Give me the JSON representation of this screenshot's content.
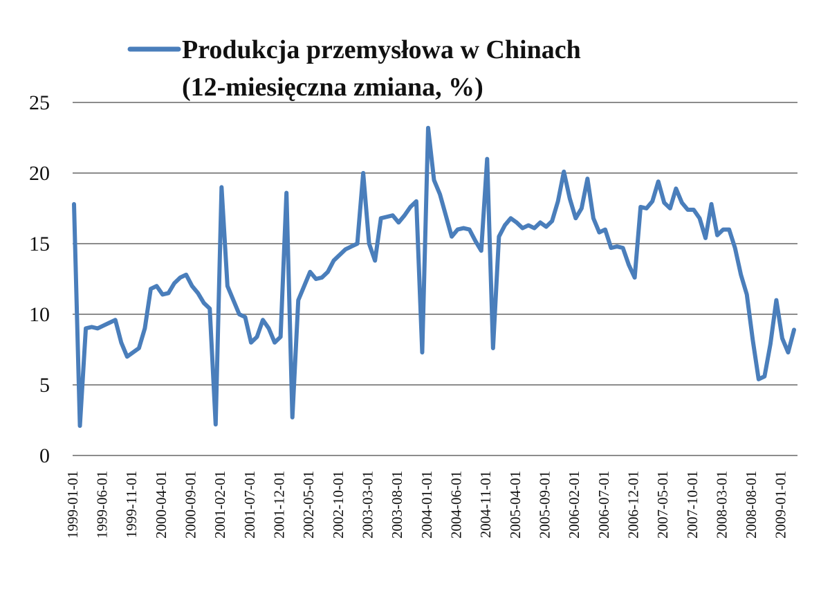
{
  "chart_data": {
    "type": "line",
    "legend": {
      "label_line1": "Produkcja przemysłowa w Chinach",
      "label_line2": "(12-miesięczna zmiana, %)",
      "placement": "top"
    },
    "ylim": [
      0,
      25
    ],
    "yticks": [
      "0",
      "5",
      "10",
      "15",
      "20",
      "25"
    ],
    "grid": "horizontal",
    "xticks": [
      "1999-01-01",
      "1999-06-01",
      "1999-11-01",
      "2000-04-01",
      "2000-09-01",
      "2001-02-01",
      "2001-07-01",
      "2001-12-01",
      "2002-05-01",
      "2002-10-01",
      "2003-03-01",
      "2003-08-01",
      "2004-01-01",
      "2004-06-01",
      "2004-11-01",
      "2005-04-01",
      "2005-09-01",
      "2006-02-01",
      "2006-07-01",
      "2006-12-01",
      "2007-05-01",
      "2007-10-01",
      "2008-03-01",
      "2008-08-01",
      "2009-01-01"
    ],
    "line_color": "#4a7ebb",
    "series": [
      {
        "name": "Produkcja przemysłowa w Chinach (12-miesięczna zmiana, %)",
        "values": [
          17.8,
          2.1,
          9.0,
          9.1,
          9.0,
          9.2,
          9.4,
          9.6,
          8.0,
          7.0,
          7.3,
          7.6,
          9.0,
          11.8,
          12.0,
          11.4,
          11.5,
          12.2,
          12.6,
          12.8,
          12.0,
          11.5,
          10.8,
          10.4,
          2.2,
          19.0,
          12.0,
          11.0,
          10.0,
          9.8,
          8.0,
          8.4,
          9.6,
          9.0,
          8.0,
          8.4,
          18.6,
          2.7,
          11.0,
          12.0,
          13.0,
          12.5,
          12.6,
          13.0,
          13.8,
          14.2,
          14.6,
          14.8,
          15.0,
          20.0,
          15.0,
          13.8,
          16.8,
          16.9,
          17.0,
          16.5,
          17.0,
          17.6,
          18.0,
          7.3,
          23.2,
          19.5,
          18.5,
          17.0,
          15.5,
          16.0,
          16.1,
          16.0,
          15.2,
          14.5,
          21.0,
          7.6,
          15.5,
          16.3,
          16.8,
          16.5,
          16.1,
          16.3,
          16.1,
          16.5,
          16.2,
          16.6,
          18.0,
          20.1,
          18.2,
          16.8,
          17.5,
          19.6,
          16.8,
          15.8,
          16.0,
          14.7,
          14.8,
          14.7,
          13.5,
          12.6,
          17.6,
          17.5,
          18.0,
          19.4,
          17.9,
          17.5,
          18.9,
          17.9,
          17.4,
          17.4,
          16.8,
          15.4,
          17.8,
          15.6,
          16.0,
          16.0,
          14.7,
          12.8,
          11.4,
          8.2,
          5.4,
          5.6,
          7.9,
          11.0,
          8.3,
          7.3,
          8.9
        ]
      }
    ]
  }
}
